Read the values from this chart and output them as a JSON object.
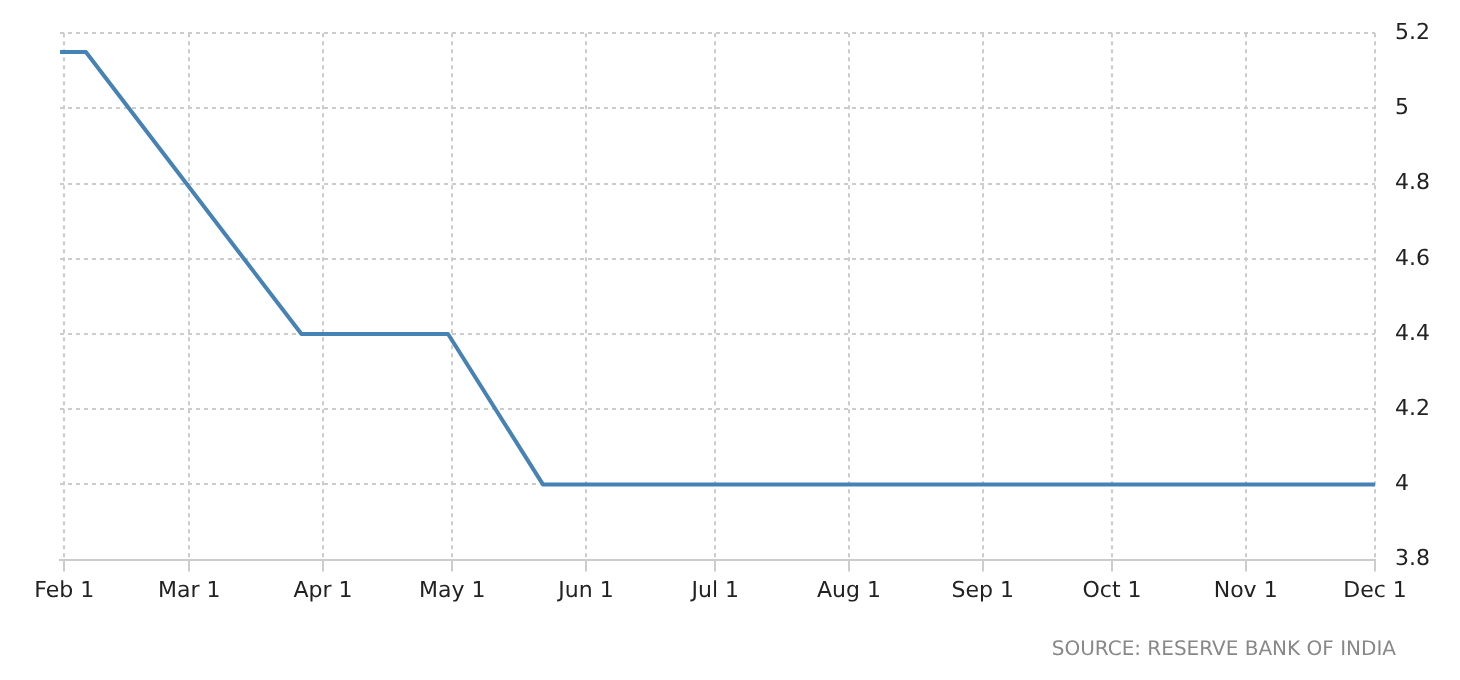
{
  "chart_data": {
    "type": "line",
    "x": [
      "--01-31",
      "--02-06",
      "--03-27",
      "--04-30",
      "--05-22",
      "--12-01"
    ],
    "series": [
      {
        "color": "#4682b4",
        "values": [
          5.15,
          5.15,
          4.4,
          4.4,
          4,
          4
        ]
      }
    ],
    "xlim": [
      "--01-31",
      "--12-01"
    ],
    "xticks": [
      {
        "value": "--02-01",
        "label": "Feb 1"
      },
      {
        "value": "--03-01",
        "label": "Mar 1"
      },
      {
        "value": "--04-01",
        "label": "Apr 1"
      },
      {
        "value": "--05-01",
        "label": "May 1"
      },
      {
        "value": "--06-01",
        "label": "Jun 1"
      },
      {
        "value": "--07-01",
        "label": "Jul 1"
      },
      {
        "value": "--08-01",
        "label": "Aug 1"
      },
      {
        "value": "--09-01",
        "label": "Sep 1"
      },
      {
        "value": "--10-01",
        "label": "Oct 1"
      },
      {
        "value": "--11-01",
        "label": "Nov 1"
      },
      {
        "value": "--12-01",
        "label": "Dec 1"
      }
    ],
    "ylim": [
      3.8,
      5.2
    ],
    "yticks": [
      3.8,
      4,
      4.2,
      4.4,
      4.6,
      4.8,
      5,
      5.2
    ],
    "grid": true,
    "marker": "none",
    "line_style": "solid",
    "legend": false,
    "annotations": [
      "SOURCE: RESERVE BANK OF INDIA"
    ]
  }
}
